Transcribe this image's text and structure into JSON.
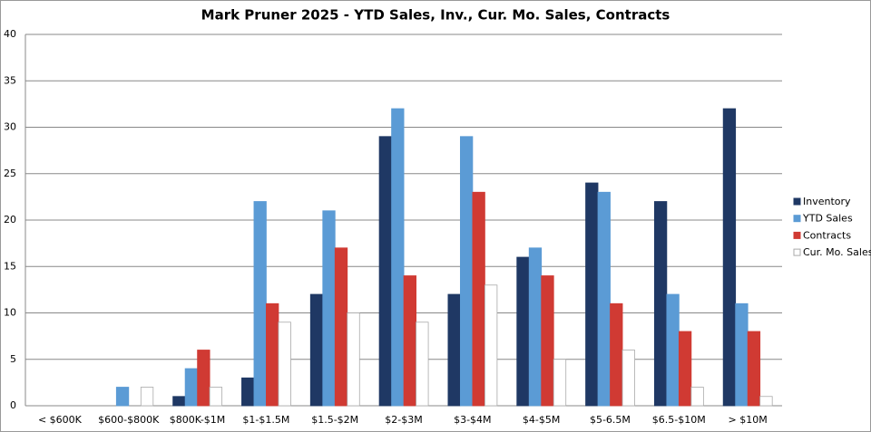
{
  "chart_data": {
    "type": "bar",
    "title": "Mark Pruner 2025 - YTD Sales, Inv., Cur. Mo. Sales, Contracts",
    "categories": [
      "< $600K",
      "$600-$800K",
      "$800K-$1M",
      "$1-$1.5M",
      "$1.5-$2M",
      "$2-$3M",
      "$3-$4M",
      "$4-$5M",
      "$5-6.5M",
      "$6.5-$10M",
      "> $10M"
    ],
    "series": [
      {
        "name": "Inventory",
        "color": "#1f3864",
        "values": [
          0,
          0,
          1,
          3,
          12,
          29,
          12,
          16,
          24,
          22,
          32
        ]
      },
      {
        "name": "YTD Sales",
        "color": "#5b9bd5",
        "values": [
          0,
          2,
          4,
          22,
          21,
          32,
          29,
          17,
          23,
          12,
          11
        ]
      },
      {
        "name": "Contracts",
        "color": "#d03a33",
        "values": [
          0,
          0,
          6,
          11,
          17,
          14,
          23,
          14,
          11,
          8,
          8
        ]
      },
      {
        "name": "Cur. Mo. Sales",
        "color": "#ffffff",
        "values": [
          0,
          2,
          2,
          9,
          10,
          9,
          13,
          5,
          6,
          2,
          1
        ]
      }
    ],
    "ylim": [
      0,
      40
    ],
    "yticks": [
      0,
      5,
      10,
      15,
      20,
      25,
      30,
      35,
      40
    ],
    "grid": true,
    "legend": "right"
  }
}
